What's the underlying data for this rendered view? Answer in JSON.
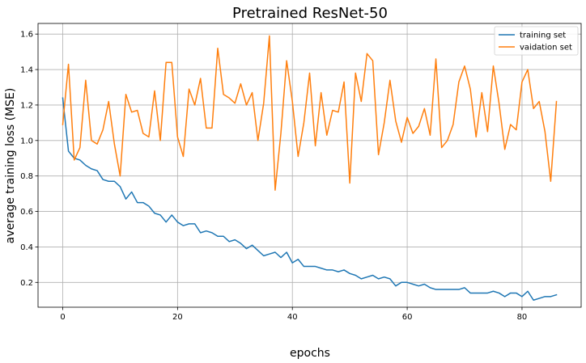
{
  "chart_data": {
    "type": "line",
    "title": "Pretrained ResNet-50",
    "xlabel": "epochs",
    "ylabel": "average training loss (MSE)",
    "xlim": [
      -4.3,
      90.3
    ],
    "ylim": [
      0.06,
      1.66
    ],
    "xticks": [
      0,
      20,
      40,
      60,
      80
    ],
    "yticks": [
      0.2,
      0.4,
      0.6,
      0.8,
      1.0,
      1.2,
      1.4,
      1.6
    ],
    "grid": true,
    "legend_position": "top-right",
    "series": [
      {
        "name": "training set",
        "color": "#1f77b4",
        "x": [
          0,
          1,
          2,
          3,
          4,
          5,
          6,
          7,
          8,
          9,
          10,
          11,
          12,
          13,
          14,
          15,
          16,
          17,
          18,
          19,
          20,
          21,
          22,
          23,
          24,
          25,
          26,
          27,
          28,
          29,
          30,
          31,
          32,
          33,
          34,
          35,
          36,
          37,
          38,
          39,
          40,
          41,
          42,
          43,
          44,
          45,
          46,
          47,
          48,
          49,
          50,
          51,
          52,
          53,
          54,
          55,
          56,
          57,
          58,
          59,
          60,
          61,
          62,
          63,
          64,
          65,
          66,
          67,
          68,
          69,
          70,
          71,
          72,
          73,
          74,
          75,
          76,
          77,
          78,
          79,
          80,
          81,
          82,
          83,
          84,
          85,
          86
        ],
        "y": [
          1.24,
          0.94,
          0.9,
          0.89,
          0.86,
          0.84,
          0.83,
          0.78,
          0.77,
          0.77,
          0.74,
          0.67,
          0.71,
          0.65,
          0.65,
          0.63,
          0.59,
          0.58,
          0.54,
          0.58,
          0.54,
          0.52,
          0.53,
          0.53,
          0.48,
          0.49,
          0.48,
          0.46,
          0.46,
          0.43,
          0.44,
          0.42,
          0.39,
          0.41,
          0.38,
          0.35,
          0.36,
          0.37,
          0.34,
          0.37,
          0.31,
          0.33,
          0.29,
          0.29,
          0.29,
          0.28,
          0.27,
          0.27,
          0.26,
          0.27,
          0.25,
          0.24,
          0.22,
          0.23,
          0.24,
          0.22,
          0.23,
          0.22,
          0.18,
          0.2,
          0.2,
          0.19,
          0.18,
          0.19,
          0.17,
          0.16,
          0.16,
          0.16,
          0.16,
          0.16,
          0.17,
          0.14,
          0.14,
          0.14,
          0.14,
          0.15,
          0.14,
          0.12,
          0.14,
          0.14,
          0.12,
          0.15,
          0.1,
          0.11,
          0.12,
          0.12,
          0.13
        ]
      },
      {
        "name": "vaidation set",
        "color": "#ff7f0e",
        "x": [
          0,
          1,
          2,
          3,
          4,
          5,
          6,
          7,
          8,
          9,
          10,
          11,
          12,
          13,
          14,
          15,
          16,
          17,
          18,
          19,
          20,
          21,
          22,
          23,
          24,
          25,
          26,
          27,
          28,
          29,
          30,
          31,
          32,
          33,
          34,
          35,
          36,
          37,
          38,
          39,
          40,
          41,
          42,
          43,
          44,
          45,
          46,
          47,
          48,
          49,
          50,
          51,
          52,
          53,
          54,
          55,
          56,
          57,
          58,
          59,
          60,
          61,
          62,
          63,
          64,
          65,
          66,
          67,
          68,
          69,
          70,
          71,
          72,
          73,
          74,
          75,
          76,
          77,
          78,
          79,
          80,
          81,
          82,
          83,
          84,
          85,
          86
        ],
        "y": [
          1.09,
          1.43,
          0.89,
          0.96,
          1.34,
          1.0,
          0.98,
          1.06,
          1.22,
          0.98,
          0.8,
          1.26,
          1.16,
          1.17,
          1.04,
          1.02,
          1.28,
          1.0,
          1.44,
          1.44,
          1.02,
          0.91,
          1.29,
          1.2,
          1.35,
          1.07,
          1.07,
          1.52,
          1.26,
          1.24,
          1.21,
          1.32,
          1.2,
          1.27,
          1.0,
          1.21,
          1.59,
          0.72,
          1.04,
          1.45,
          1.22,
          0.91,
          1.1,
          1.38,
          0.97,
          1.27,
          1.03,
          1.17,
          1.16,
          1.33,
          0.76,
          1.38,
          1.22,
          1.49,
          1.45,
          0.92,
          1.1,
          1.34,
          1.11,
          0.99,
          1.13,
          1.04,
          1.08,
          1.18,
          1.03,
          1.46,
          0.96,
          1.0,
          1.09,
          1.33,
          1.42,
          1.29,
          1.02,
          1.27,
          1.05,
          1.42,
          1.21,
          0.95,
          1.09,
          1.06,
          1.33,
          1.4,
          1.18,
          1.22,
          1.05,
          0.77,
          1.22
        ]
      }
    ]
  }
}
